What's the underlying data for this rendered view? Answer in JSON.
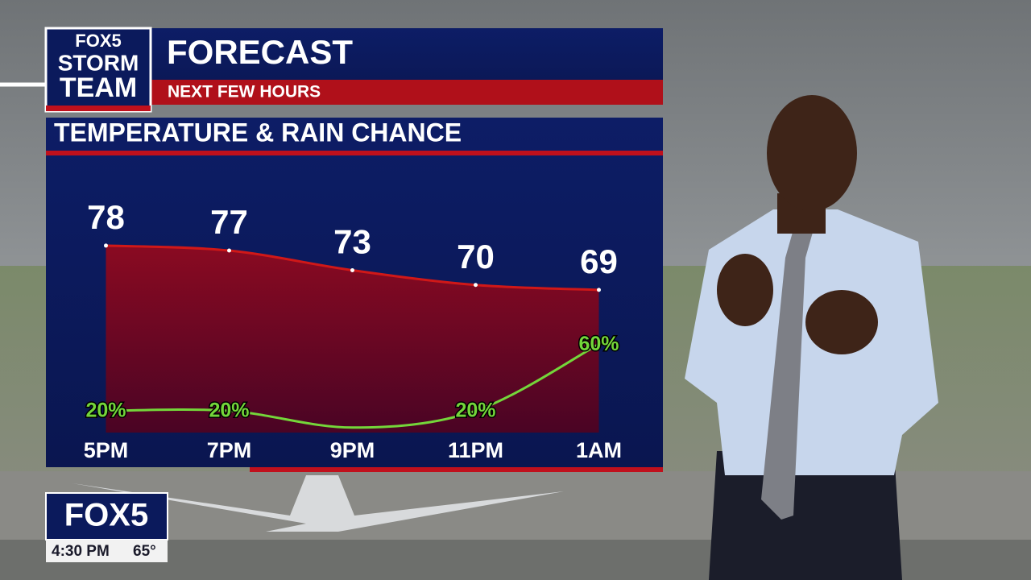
{
  "header": {
    "logo_top": "FOX5",
    "logo_line1": "STORM",
    "logo_line2": "TEAM",
    "title": "FORECAST",
    "subtitle": "NEXT FEW HOURS"
  },
  "chart_data": {
    "type": "line",
    "title": "TEMPERATURE & RAIN CHANCE",
    "categories": [
      "5PM",
      "7PM",
      "9PM",
      "11PM",
      "1AM"
    ],
    "ylim": [
      40,
      96
    ],
    "y2lim": [
      7,
      172
    ],
    "series": [
      {
        "name": "Temperature",
        "color": "#d01818",
        "values": [
          78,
          77,
          73,
          70,
          69
        ]
      },
      {
        "name": "Rain Chance",
        "color": "#74d63a",
        "axis": "y2",
        "values": [
          20,
          20,
          10,
          20,
          60
        ],
        "value_labels": [
          "20%",
          "20%",
          null,
          "20%",
          "60%"
        ]
      }
    ]
  },
  "bug": {
    "logo": "FOX5",
    "time": "4:30 PM",
    "temp": "65°"
  }
}
